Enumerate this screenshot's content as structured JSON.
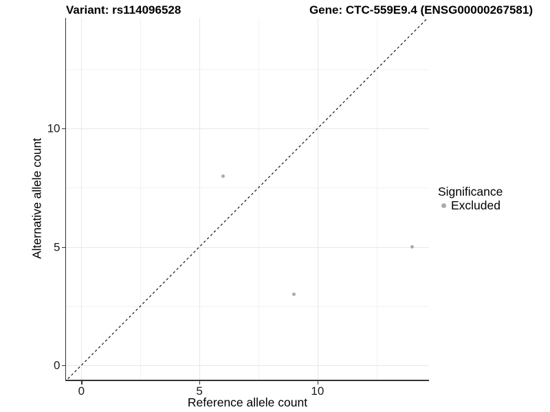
{
  "chart_data": {
    "type": "scatter",
    "title_left": "Variant: rs114096528",
    "title_right": "Gene: CTC-559E9.4 (ENSG00000267581)",
    "xlabel": "Reference allele count",
    "ylabel": "Alternative allele count",
    "xlim": [
      -0.65,
      14.72
    ],
    "ylim": [
      -0.61,
      14.67
    ],
    "x_major_ticks": [
      0,
      5,
      10
    ],
    "y_major_ticks": [
      0,
      5,
      10
    ],
    "x_minor_gridlines": [
      2.5,
      7.5,
      12.5
    ],
    "y_minor_gridlines": [
      2.5,
      7.5,
      12.5
    ],
    "grid": "major+minor",
    "series": [
      {
        "name": "Excluded",
        "color": "#ababab",
        "points": [
          {
            "x": 6,
            "y": 8
          },
          {
            "x": 9,
            "y": 3
          },
          {
            "x": 14,
            "y": 5
          }
        ]
      }
    ],
    "identity_line": {
      "slope": 1,
      "intercept": 0,
      "style": "dashed",
      "color": "#111111"
    },
    "legend": {
      "position": "right",
      "title": "Significance",
      "entries": [
        {
          "label": "Excluded",
          "color": "#ababab"
        }
      ]
    },
    "colors": {
      "background": "#ffffff",
      "axis_line": "#333333",
      "major_grid": "#e7e7e7",
      "minor_grid": "#f2f2f2",
      "tick_label": "#1a1a1a",
      "title_text": "#000000"
    }
  }
}
